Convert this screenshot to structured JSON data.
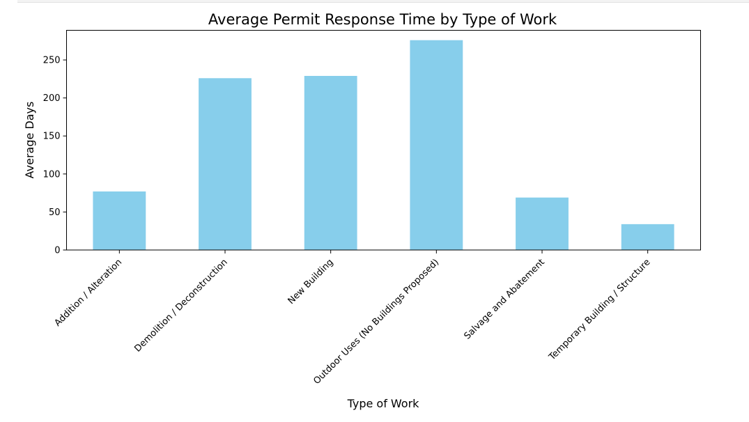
{
  "chart_data": {
    "type": "bar",
    "title": "Average Permit Response Time by Type of Work",
    "xlabel": "Type of Work",
    "ylabel": "Average Days",
    "categories": [
      "Addition / Alteration",
      "Demolition / Deconstruction",
      "New Building",
      "Outdoor Uses (No Buildings Proposed)",
      "Salvage and Abatement",
      "Temporary Building / Structure"
    ],
    "values": [
      77,
      226,
      229,
      276,
      69,
      34
    ],
    "ylim": [
      0,
      289
    ],
    "yticks": [
      0,
      50,
      100,
      150,
      200,
      250
    ],
    "bar_color": "#87ceeb",
    "grid": false,
    "legend": false
  }
}
